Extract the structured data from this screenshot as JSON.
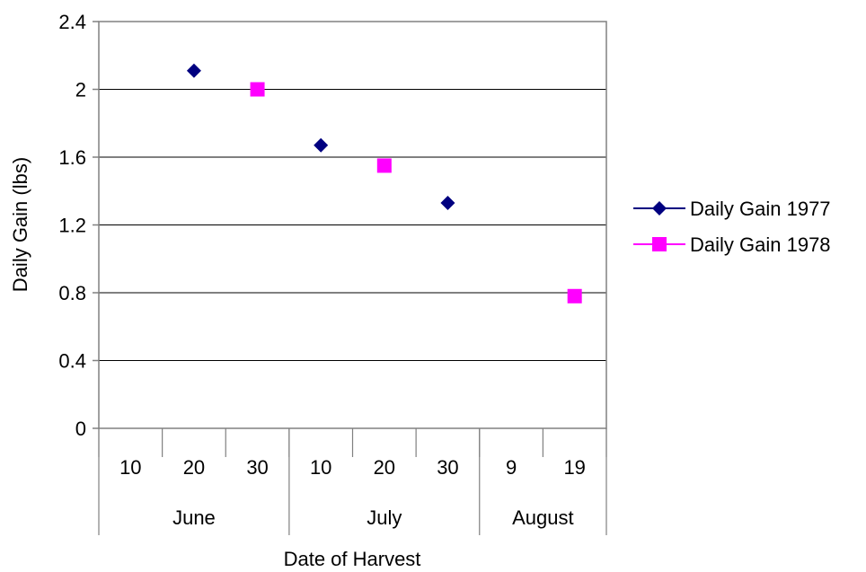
{
  "chart_data": {
    "type": "scatter",
    "title": "",
    "xlabel": "Date of Harvest",
    "ylabel": "Daily Gain (lbs)",
    "ylim": [
      0,
      2.4
    ],
    "yticks": [
      "0",
      "0.4",
      "0.8",
      "1.2",
      "1.6",
      "2",
      "2.4"
    ],
    "categories": [
      "10",
      "20",
      "30",
      "10",
      "20",
      "30",
      "9",
      "19"
    ],
    "groups": [
      {
        "label": "June",
        "span": 3
      },
      {
        "label": "July",
        "span": 3
      },
      {
        "label": "August",
        "span": 2
      }
    ],
    "grid": true,
    "legend_position": "right",
    "series": [
      {
        "name": "Daily Gain 1977",
        "marker": "diamond",
        "color": "#000080",
        "values": [
          null,
          2.11,
          null,
          1.67,
          null,
          1.33,
          null,
          null
        ]
      },
      {
        "name": "Daily Gain 1978",
        "marker": "square",
        "color": "#ff00ff",
        "values": [
          null,
          null,
          2.0,
          null,
          1.55,
          null,
          null,
          0.78
        ]
      }
    ]
  }
}
